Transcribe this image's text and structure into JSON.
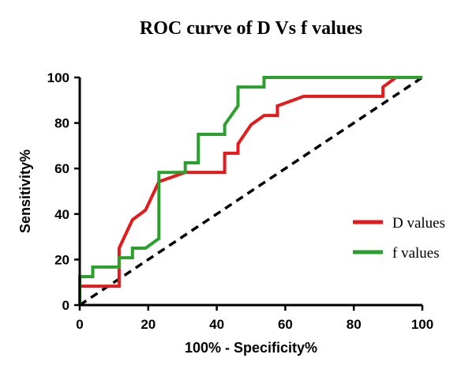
{
  "chart_data": {
    "type": "line",
    "title": "ROC curve of D Vs f values",
    "xlabel": "100% - Specificity%",
    "ylabel": "Sensitivity%",
    "xlim": [
      0,
      100
    ],
    "ylim": [
      0,
      100
    ],
    "xticks": [
      0,
      20,
      40,
      60,
      80,
      100
    ],
    "yticks": [
      0,
      20,
      40,
      60,
      80,
      100
    ],
    "grid": false,
    "legend_position": "right",
    "series": [
      {
        "name": "D values",
        "color": "#e41a1c",
        "style": "step",
        "points": [
          [
            0,
            0
          ],
          [
            0,
            8.3
          ],
          [
            11.5,
            8.3
          ],
          [
            11.5,
            25
          ],
          [
            15.4,
            37.5
          ],
          [
            19.2,
            41.7
          ],
          [
            23.1,
            54.2
          ],
          [
            30.8,
            58.3
          ],
          [
            42.3,
            58.3
          ],
          [
            42.3,
            66.7
          ],
          [
            46.2,
            66.7
          ],
          [
            46.2,
            70.8
          ],
          [
            50,
            79.2
          ],
          [
            53.8,
            83.3
          ],
          [
            57.7,
            83.3
          ],
          [
            57.7,
            87.5
          ],
          [
            65.4,
            91.7
          ],
          [
            88.5,
            91.7
          ],
          [
            88.5,
            95.8
          ],
          [
            92.3,
            100
          ],
          [
            100,
            100
          ]
        ]
      },
      {
        "name": "f values",
        "color": "#2ca02c",
        "style": "step",
        "points": [
          [
            0,
            0
          ],
          [
            0,
            12.5
          ],
          [
            3.8,
            12.5
          ],
          [
            3.8,
            16.7
          ],
          [
            11.5,
            16.7
          ],
          [
            11.5,
            20.8
          ],
          [
            15.4,
            20.8
          ],
          [
            15.4,
            25
          ],
          [
            19.2,
            25
          ],
          [
            23.1,
            29.2
          ],
          [
            23.1,
            58.3
          ],
          [
            30.8,
            58.3
          ],
          [
            30.8,
            62.5
          ],
          [
            34.6,
            62.5
          ],
          [
            34.6,
            75
          ],
          [
            42.3,
            75
          ],
          [
            42.3,
            79.2
          ],
          [
            46.2,
            87.5
          ],
          [
            46.2,
            95.8
          ],
          [
            53.8,
            95.8
          ],
          [
            53.8,
            100
          ],
          [
            100,
            100
          ]
        ]
      },
      {
        "name": "reference",
        "color": "#000000",
        "style": "dashed",
        "points": [
          [
            0,
            0
          ],
          [
            100,
            100
          ]
        ]
      }
    ]
  }
}
